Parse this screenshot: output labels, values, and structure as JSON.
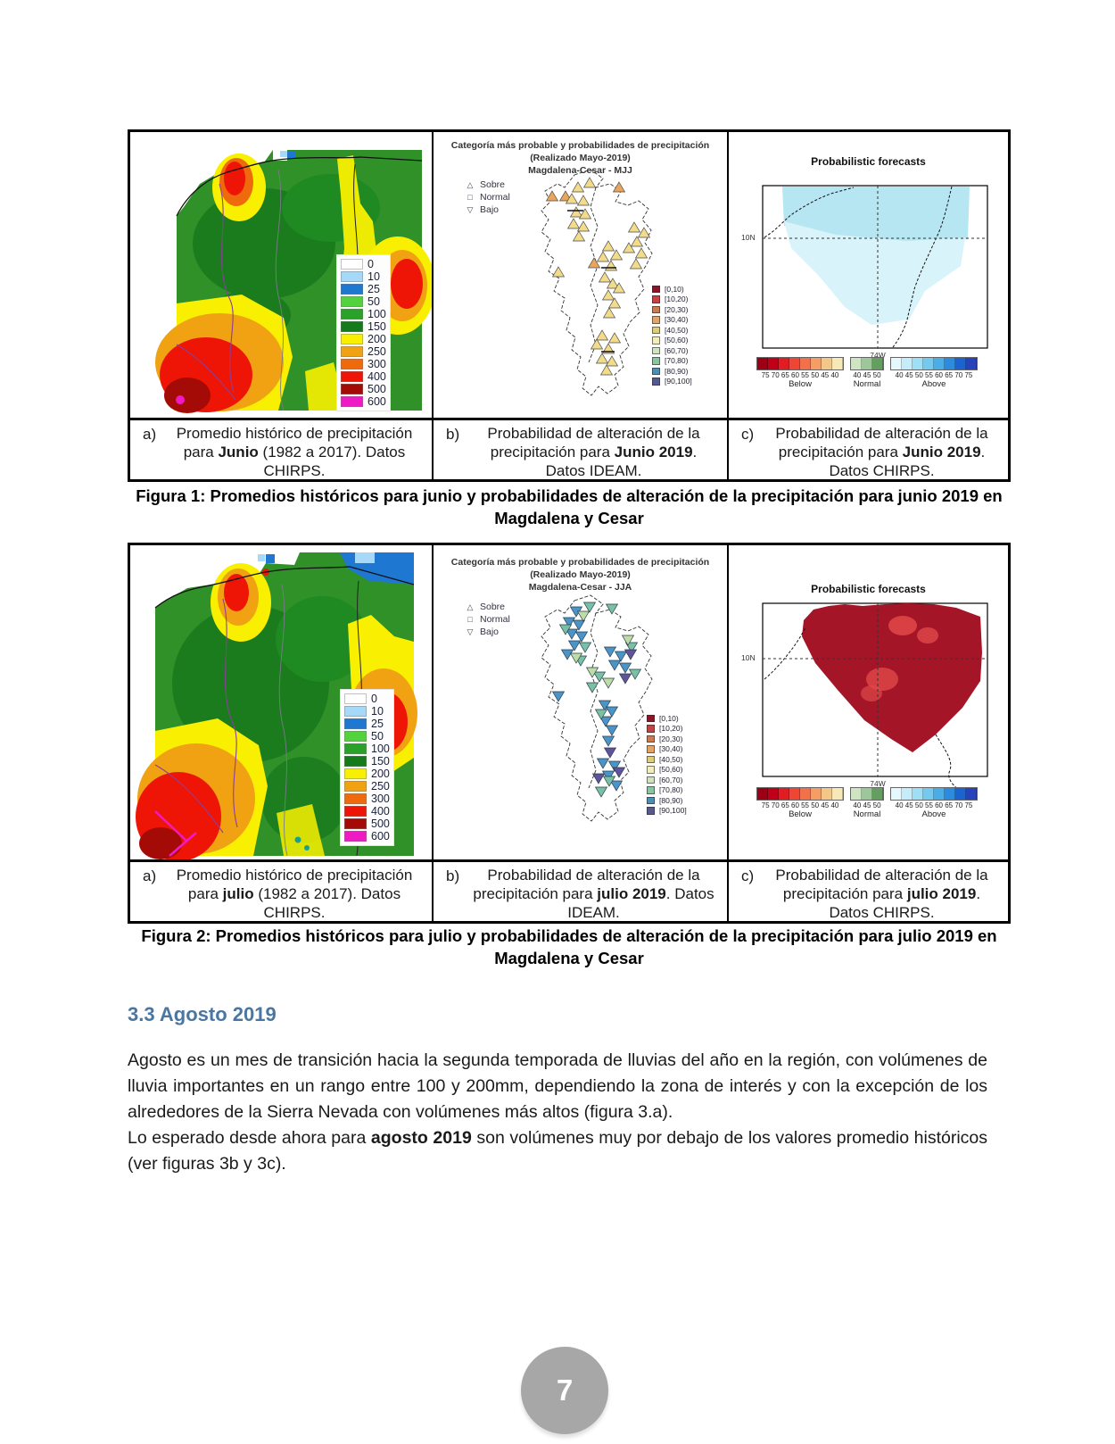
{
  "colors": {
    "heading": "#4a76a2",
    "page_circle": "#a7a7a7",
    "table_border": "#000000"
  },
  "figure1": {
    "panelA": {
      "legend": [
        {
          "c": "#ffffff",
          "v": "0"
        },
        {
          "c": "#a6d9f7",
          "v": "10"
        },
        {
          "c": "#1e78d2",
          "v": "25"
        },
        {
          "c": "#52d33e",
          "v": "50"
        },
        {
          "c": "#2aa22a",
          "v": "100"
        },
        {
          "c": "#147a1c",
          "v": "150"
        },
        {
          "c": "#f8f000",
          "v": "200"
        },
        {
          "c": "#f0a212",
          "v": "250"
        },
        {
          "c": "#ef6a0d",
          "v": "300"
        },
        {
          "c": "#ee1507",
          "v": "400"
        },
        {
          "c": "#a50b06",
          "v": "500"
        },
        {
          "c": "#ef1ac4",
          "v": "600"
        }
      ]
    },
    "panelB": {
      "title1": "Categoría más probable y probabilidades de precipitación",
      "title2": "(Realizado Mayo-2019)",
      "title3": "Magdalena-Cesar - MJJ",
      "markers": [
        {
          "sym": "△",
          "label": "Sobre"
        },
        {
          "sym": "□",
          "label": "Normal"
        },
        {
          "sym": "▽",
          "label": "Bajo"
        }
      ],
      "categories": [
        {
          "c": "#8e1428",
          "v": "[0,10)"
        },
        {
          "c": "#c24444",
          "v": "[10,20)"
        },
        {
          "c": "#cc7a4e",
          "v": "[20,30)"
        },
        {
          "c": "#e2a368",
          "v": "[30,40)"
        },
        {
          "c": "#ddcc7a",
          "v": "[40,50)"
        },
        {
          "c": "#f2eebc",
          "v": "[50,60)"
        },
        {
          "c": "#cfe3c0",
          "v": "[60,70)"
        },
        {
          "c": "#8cc4a2",
          "v": "[70,80)"
        },
        {
          "c": "#4b8fb4",
          "v": "[80,90)"
        },
        {
          "c": "#585891",
          "v": "[90,100]"
        }
      ]
    },
    "panelC": {
      "title": "Probabilistic forecasts",
      "lat": "10N",
      "lon": "74W",
      "bar": {
        "below": {
          "cells": [
            "#9d0015",
            "#c00018",
            "#e21c20",
            "#ef4633",
            "#f37148",
            "#f49e63",
            "#f3c887",
            "#f6e9b8"
          ],
          "ticks": "75 70 65 60 55 50 45 40",
          "label": "Below"
        },
        "normal": {
          "cells": [
            "#cfe4c3",
            "#9dc79a",
            "#649e61"
          ],
          "ticks": "40 45 50",
          "label": "Normal"
        },
        "above": {
          "cells": [
            "#e5f8fd",
            "#c5edf9",
            "#9edff5",
            "#74c9ef",
            "#4aade8",
            "#2d8bdf",
            "#1b64cf",
            "#2742bb"
          ],
          "ticks": "40 45 50 55 60 65 70 75",
          "label": "Above"
        }
      }
    },
    "captions": {
      "a": {
        "label": "a)",
        "pre": "Promedio histórico de precipitación para ",
        "bold": "Junio",
        "post": " (1982 a 2017). Datos CHIRPS."
      },
      "b": {
        "label": "b)",
        "pre": "Probabilidad de alteración de la precipitación para ",
        "bold": "Junio 2019",
        "post": ". Datos IDEAM."
      },
      "c": {
        "label": "c)",
        "pre": "Probabilidad de alteración de la precipitación para ",
        "bold": "Junio 2019",
        "post": ". Datos CHIRPS."
      }
    },
    "figcaption": {
      "line1": "Figura 1: Promedios históricos para junio y probabilidades de alteración de la precipitación para junio 2019 en",
      "line2": "Magdalena y Cesar"
    }
  },
  "figure2": {
    "panelA": {
      "legend": [
        {
          "c": "#ffffff",
          "v": "0"
        },
        {
          "c": "#a6d9f7",
          "v": "10"
        },
        {
          "c": "#1e78d2",
          "v": "25"
        },
        {
          "c": "#52d33e",
          "v": "50"
        },
        {
          "c": "#2aa22a",
          "v": "100"
        },
        {
          "c": "#147a1c",
          "v": "150"
        },
        {
          "c": "#f8f000",
          "v": "200"
        },
        {
          "c": "#f0a212",
          "v": "250"
        },
        {
          "c": "#ef6a0d",
          "v": "300"
        },
        {
          "c": "#ee1507",
          "v": "400"
        },
        {
          "c": "#a50b06",
          "v": "500"
        },
        {
          "c": "#ef1ac4",
          "v": "600"
        }
      ]
    },
    "panelB": {
      "title1": "Categoría más probable y probabilidades de precipitación",
      "title2": "(Realizado Mayo-2019)",
      "title3": "Magdalena-Cesar - JJA",
      "markers": [
        {
          "sym": "△",
          "label": "Sobre"
        },
        {
          "sym": "□",
          "label": "Normal"
        },
        {
          "sym": "▽",
          "label": "Bajo"
        }
      ],
      "categories": [
        {
          "c": "#8e1428",
          "v": "[0,10)"
        },
        {
          "c": "#c24444",
          "v": "[10,20)"
        },
        {
          "c": "#cc7a4e",
          "v": "[20,30)"
        },
        {
          "c": "#e2a368",
          "v": "[30,40)"
        },
        {
          "c": "#ddcc7a",
          "v": "[40,50)"
        },
        {
          "c": "#f2eebc",
          "v": "[50,60)"
        },
        {
          "c": "#cfe3c0",
          "v": "[60,70)"
        },
        {
          "c": "#8cc4a2",
          "v": "[70,80)"
        },
        {
          "c": "#4b8fb4",
          "v": "[80,90)"
        },
        {
          "c": "#585891",
          "v": "[90,100]"
        }
      ]
    },
    "panelC": {
      "title": "Probabilistic forecasts",
      "lat": "10N",
      "lon": "74W",
      "bar": {
        "below": {
          "cells": [
            "#9d0015",
            "#c00018",
            "#e21c20",
            "#ef4633",
            "#f37148",
            "#f49e63",
            "#f3c887",
            "#f6e9b8"
          ],
          "ticks": "75 70 65 60 55 50 45 40",
          "label": "Below"
        },
        "normal": {
          "cells": [
            "#cfe4c3",
            "#9dc79a",
            "#649e61"
          ],
          "ticks": "40 45 50",
          "label": "Normal"
        },
        "above": {
          "cells": [
            "#e5f8fd",
            "#c5edf9",
            "#9edff5",
            "#74c9ef",
            "#4aade8",
            "#2d8bdf",
            "#1b64cf",
            "#2742bb"
          ],
          "ticks": "40 45 50 55 60 65 70 75",
          "label": "Above"
        }
      }
    },
    "captions": {
      "a": {
        "label": "a)",
        "pre": "Promedio histórico de precipitación para ",
        "bold": "julio",
        "post": " (1982 a 2017). Datos CHIRPS."
      },
      "b": {
        "label": "b)",
        "pre": "Probabilidad de alteración de la precipitación para ",
        "bold": "julio 2019",
        "post": ". Datos IDEAM."
      },
      "c": {
        "label": "c)",
        "pre": "Probabilidad de alteración de la precipitación para ",
        "bold": "julio 2019",
        "post": ". Datos CHIRPS."
      }
    },
    "figcaption": {
      "line1": "Figura 2: Promedios históricos para julio y probabilidades de alteración de la precipitación para julio 2019 en",
      "line2": "Magdalena y Cesar"
    }
  },
  "section": {
    "heading": "3.3 Agosto 2019"
  },
  "body": {
    "p1": "Agosto es un mes de transición hacia la segunda temporada de lluvias del año en la región, con volúmenes de lluvia importantes en un rango entre 100 y 200mm, dependiendo la zona de interés y con la excepción de los alrededores de la Sierra Nevada con volúmenes más altos (figura 3.a).",
    "p2_pre": "Lo esperado desde ahora para ",
    "p2_bold": "agosto 2019",
    "p2_post": " son volúmenes muy por debajo de los valores promedio históricos (ver figuras 3b y 3c)."
  },
  "footer": {
    "page_number": "7"
  }
}
